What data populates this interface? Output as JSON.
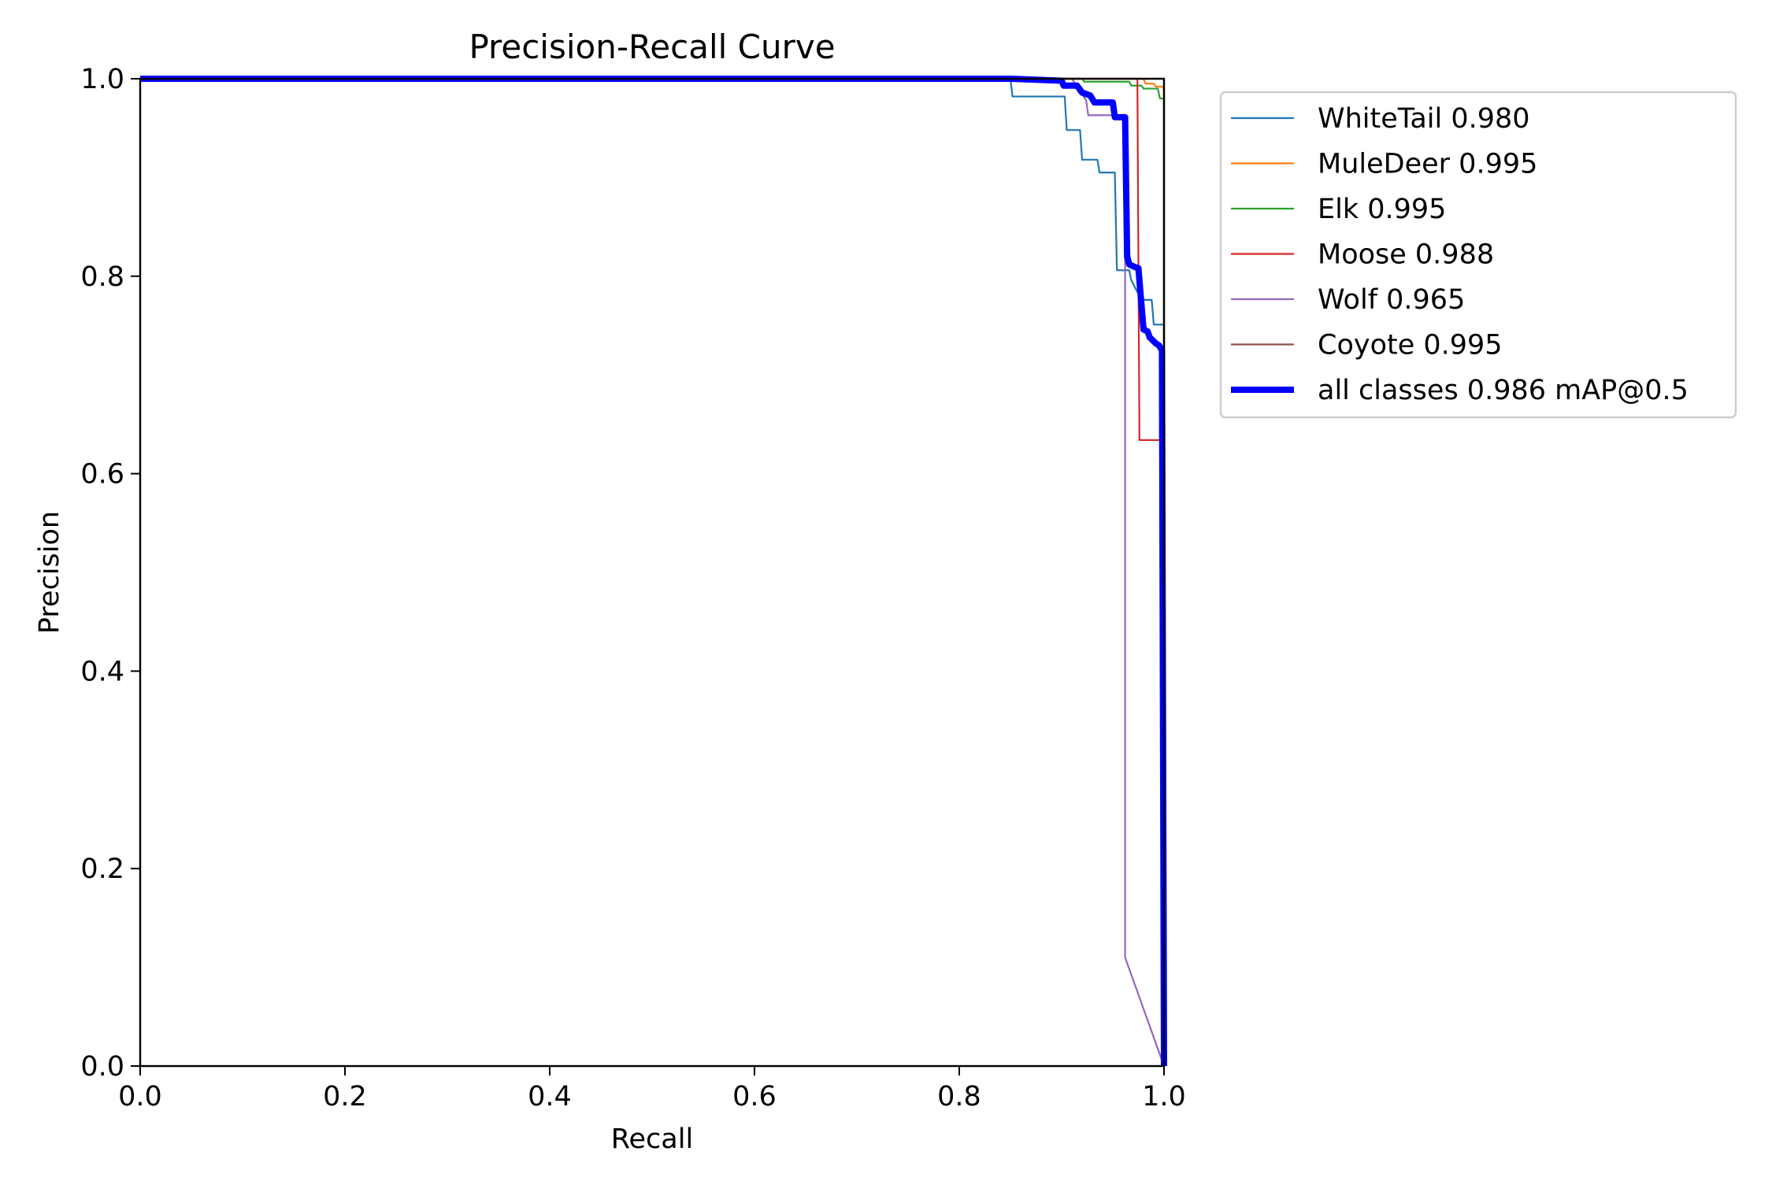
{
  "chart_data": {
    "type": "line",
    "title": "Precision-Recall Curve",
    "xlabel": "Recall",
    "ylabel": "Precision",
    "xlim": [
      0.0,
      1.0
    ],
    "ylim": [
      0.0,
      1.0
    ],
    "xticks": [
      "0.0",
      "0.2",
      "0.4",
      "0.6",
      "0.8",
      "1.0"
    ],
    "yticks": [
      "0.0",
      "0.2",
      "0.4",
      "0.6",
      "0.8",
      "1.0"
    ],
    "grid": false,
    "legend_position": "outside-top-right",
    "series": [
      {
        "name": "WhiteTail 0.980",
        "color": "#1f77b4",
        "width": "thin",
        "x": [
          0,
          0.85,
          0.852,
          0.903,
          0.905,
          0.918,
          0.92,
          0.935,
          0.937,
          0.952,
          0.954,
          0.966,
          0.968,
          0.978,
          0.98,
          0.988,
          0.99,
          0.998,
          1.0,
          1.0
        ],
        "y": [
          1.0,
          1.0,
          0.982,
          0.982,
          0.948,
          0.948,
          0.918,
          0.918,
          0.905,
          0.905,
          0.806,
          0.806,
          0.796,
          0.776,
          0.776,
          0.776,
          0.751,
          0.751,
          0.751,
          0.0
        ]
      },
      {
        "name": "MuleDeer 0.995",
        "color": "#ff7f0e",
        "width": "thin",
        "x": [
          0,
          0.98,
          0.982,
          0.99,
          0.992,
          0.998,
          1.0,
          1.0
        ],
        "y": [
          1.0,
          1.0,
          0.995,
          0.995,
          0.992,
          0.992,
          0.99,
          0.0
        ]
      },
      {
        "name": "Elk 0.995",
        "color": "#2ca02c",
        "width": "thin",
        "x": [
          0,
          0.92,
          0.922,
          0.966,
          0.968,
          0.978,
          0.98,
          0.994,
          0.996,
          1.0,
          1.0
        ],
        "y": [
          1.0,
          1.0,
          0.997,
          0.997,
          0.993,
          0.993,
          0.99,
          0.99,
          0.98,
          0.98,
          0.0
        ]
      },
      {
        "name": "Moose 0.988",
        "color": "#d62728",
        "width": "thin",
        "x": [
          0,
          0.974,
          0.976,
          0.997,
          0.998,
          0.998
        ],
        "y": [
          1.0,
          1.0,
          0.634,
          0.634,
          0.634,
          0.0
        ]
      },
      {
        "name": "Wolf 0.965",
        "color": "#9467bd",
        "width": "thin",
        "x": [
          0,
          0.91,
          0.924,
          0.926,
          0.96,
          0.962,
          0.962,
          1.0
        ],
        "y": [
          1.0,
          1.0,
          0.978,
          0.963,
          0.963,
          0.81,
          0.11,
          0.0
        ]
      },
      {
        "name": "Coyote 0.995",
        "color": "#8c564b",
        "width": "thin",
        "x": [
          0,
          0.998,
          1.0,
          1.0
        ],
        "y": [
          1.0,
          1.0,
          1.0,
          0.0
        ]
      },
      {
        "name": "all classes 0.986 mAP@0.5",
        "color": "#0000ff",
        "width": "thick",
        "x": [
          0,
          0.85,
          0.9,
          0.902,
          0.915,
          0.92,
          0.928,
          0.932,
          0.95,
          0.952,
          0.962,
          0.964,
          0.966,
          0.97,
          0.975,
          0.98,
          0.984,
          0.986,
          0.992,
          0.995,
          0.998,
          1.0
        ],
        "y": [
          1.0,
          1.0,
          0.998,
          0.993,
          0.993,
          0.986,
          0.983,
          0.976,
          0.976,
          0.961,
          0.961,
          0.82,
          0.812,
          0.81,
          0.808,
          0.746,
          0.744,
          0.738,
          0.732,
          0.73,
          0.725,
          0.0
        ]
      }
    ]
  }
}
